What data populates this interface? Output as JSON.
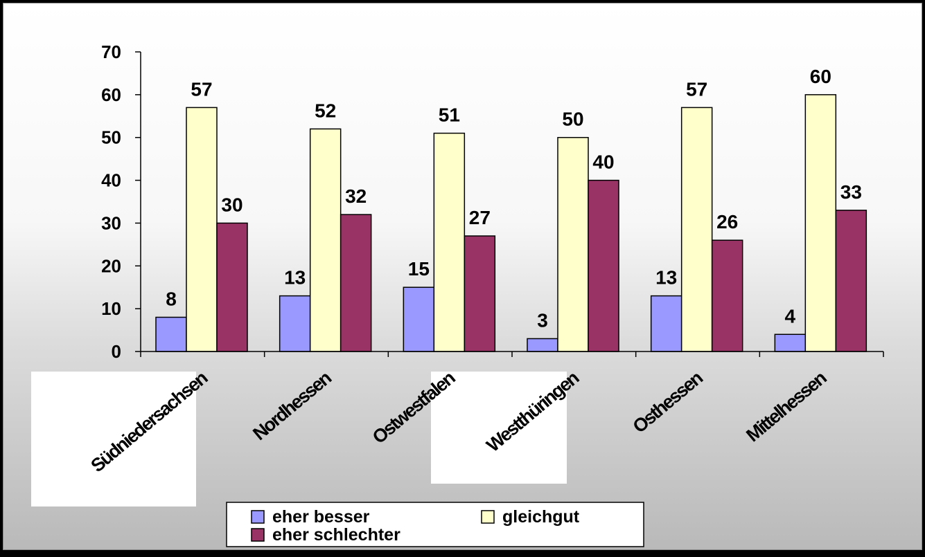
{
  "chart_data": {
    "type": "bar",
    "categories": [
      "Südniedersachsen",
      "Nordhessen",
      "Ostwestfalen",
      "Westthüringen",
      "Osthessen",
      "Mittelhessen"
    ],
    "series": [
      {
        "name": "eher besser",
        "values": [
          8,
          13,
          15,
          3,
          13,
          4
        ],
        "color": "#9999ff"
      },
      {
        "name": "gleichgut",
        "values": [
          57,
          52,
          51,
          50,
          57,
          60
        ],
        "color": "#ffffcc"
      },
      {
        "name": "eher schlechter",
        "values": [
          30,
          32,
          27,
          40,
          26,
          33
        ],
        "color": "#993366"
      }
    ],
    "yticks": [
      "0",
      "10",
      "20",
      "30",
      "40",
      "50",
      "60",
      "70"
    ],
    "ylim": [
      0,
      70
    ],
    "grid": false,
    "legend_position": "bottom"
  }
}
